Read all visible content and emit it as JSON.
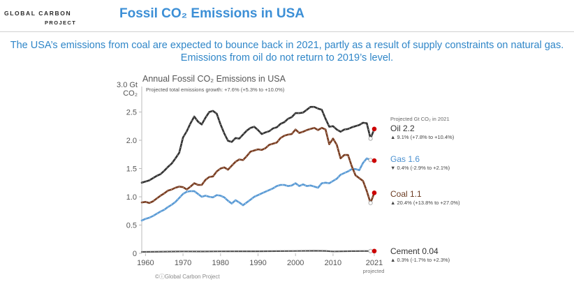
{
  "header": {
    "logo_line1": "GLOBAL CARBON",
    "logo_line2": "PROJECT",
    "slide_title": "Fossil CO₂ Emissions in USA",
    "subtitle_line1": "The USA’s emissions from coal are expected to bounce back in 2021, partly as a result of supply constraints on natural gas.",
    "subtitle_line2": "Emissions from oil do not return to 2019’s level."
  },
  "chart_data": {
    "type": "line",
    "title": "Annual Fossil CO₂ Emissions in USA",
    "subtitle": "Projected total emissions growth: +7.6% (+5.3% to +10.0%)",
    "ylabel_line1": "3.0 Gt",
    "ylabel_line2": "CO₂",
    "ylim": [
      0,
      3.0
    ],
    "xlim": [
      1959,
      2021
    ],
    "yticks": [
      "0",
      "0.5",
      "1.0",
      "1.5",
      "2.0",
      "2.5"
    ],
    "yticks_values": [
      0,
      0.5,
      1.0,
      1.5,
      2.0,
      2.5
    ],
    "xticks": [
      "1960",
      "1970",
      "1980",
      "1990",
      "2000",
      "2010",
      "2021"
    ],
    "xticks_values": [
      1960,
      1970,
      1980,
      1990,
      2000,
      2010,
      2021
    ],
    "x_note": "projected",
    "legend_header": "Projected Gt CO₂ in 2021",
    "credit": "©ⓘGlobal Carbon Project",
    "colors": {
      "oil": "#333333",
      "gas": "#5b9bd5",
      "coal": "#7a3e22",
      "cement": "#555555",
      "projection": "#cc0000"
    },
    "series": [
      {
        "key": "oil",
        "name": "Oil 2.2",
        "note": "▲ 9.1% (+7.8% to +10.4%)",
        "points": [
          [
            1959,
            1.25
          ],
          [
            1960,
            1.27
          ],
          [
            1961,
            1.29
          ],
          [
            1962,
            1.33
          ],
          [
            1963,
            1.37
          ],
          [
            1964,
            1.4
          ],
          [
            1965,
            1.46
          ],
          [
            1966,
            1.53
          ],
          [
            1967,
            1.59
          ],
          [
            1968,
            1.68
          ],
          [
            1969,
            1.78
          ],
          [
            1970,
            2.05
          ],
          [
            1971,
            2.16
          ],
          [
            1972,
            2.3
          ],
          [
            1973,
            2.42
          ],
          [
            1974,
            2.33
          ],
          [
            1975,
            2.28
          ],
          [
            1976,
            2.4
          ],
          [
            1977,
            2.5
          ],
          [
            1978,
            2.52
          ],
          [
            1979,
            2.47
          ],
          [
            1980,
            2.28
          ],
          [
            1981,
            2.12
          ],
          [
            1982,
            1.99
          ],
          [
            1983,
            1.97
          ],
          [
            1984,
            2.04
          ],
          [
            1985,
            2.03
          ],
          [
            1986,
            2.1
          ],
          [
            1987,
            2.17
          ],
          [
            1988,
            2.22
          ],
          [
            1989,
            2.24
          ],
          [
            1990,
            2.18
          ],
          [
            1991,
            2.11
          ],
          [
            1992,
            2.14
          ],
          [
            1993,
            2.16
          ],
          [
            1994,
            2.21
          ],
          [
            1995,
            2.23
          ],
          [
            1996,
            2.29
          ],
          [
            1997,
            2.32
          ],
          [
            1998,
            2.38
          ],
          [
            1999,
            2.41
          ],
          [
            2000,
            2.48
          ],
          [
            2001,
            2.48
          ],
          [
            2002,
            2.49
          ],
          [
            2003,
            2.54
          ],
          [
            2004,
            2.59
          ],
          [
            2005,
            2.59
          ],
          [
            2006,
            2.56
          ],
          [
            2007,
            2.54
          ],
          [
            2008,
            2.38
          ],
          [
            2009,
            2.24
          ],
          [
            2010,
            2.25
          ],
          [
            2011,
            2.19
          ],
          [
            2012,
            2.15
          ],
          [
            2013,
            2.19
          ],
          [
            2014,
            2.2
          ],
          [
            2015,
            2.23
          ],
          [
            2016,
            2.25
          ],
          [
            2017,
            2.27
          ],
          [
            2018,
            2.31
          ],
          [
            2019,
            2.3
          ],
          [
            2020,
            2.03
          ],
          [
            2021,
            2.2
          ]
        ]
      },
      {
        "key": "gas",
        "name": "Gas 1.6",
        "note": "▼ 0.4% (-2.9% to +2.1%)",
        "points": [
          [
            1959,
            0.58
          ],
          [
            1960,
            0.61
          ],
          [
            1961,
            0.63
          ],
          [
            1962,
            0.66
          ],
          [
            1963,
            0.7
          ],
          [
            1964,
            0.74
          ],
          [
            1965,
            0.77
          ],
          [
            1966,
            0.82
          ],
          [
            1967,
            0.86
          ],
          [
            1968,
            0.91
          ],
          [
            1969,
            0.98
          ],
          [
            1970,
            1.05
          ],
          [
            1971,
            1.09
          ],
          [
            1972,
            1.1
          ],
          [
            1973,
            1.1
          ],
          [
            1974,
            1.05
          ],
          [
            1975,
            1.0
          ],
          [
            1976,
            1.02
          ],
          [
            1977,
            1.0
          ],
          [
            1978,
            0.99
          ],
          [
            1979,
            1.03
          ],
          [
            1980,
            1.02
          ],
          [
            1981,
            0.99
          ],
          [
            1982,
            0.93
          ],
          [
            1983,
            0.88
          ],
          [
            1984,
            0.94
          ],
          [
            1985,
            0.9
          ],
          [
            1986,
            0.85
          ],
          [
            1987,
            0.9
          ],
          [
            1988,
            0.95
          ],
          [
            1989,
            1.0
          ],
          [
            1990,
            1.03
          ],
          [
            1991,
            1.06
          ],
          [
            1992,
            1.09
          ],
          [
            1993,
            1.12
          ],
          [
            1994,
            1.15
          ],
          [
            1995,
            1.19
          ],
          [
            1996,
            1.21
          ],
          [
            1997,
            1.21
          ],
          [
            1998,
            1.19
          ],
          [
            1999,
            1.2
          ],
          [
            2000,
            1.24
          ],
          [
            2001,
            1.19
          ],
          [
            2002,
            1.22
          ],
          [
            2003,
            1.19
          ],
          [
            2004,
            1.2
          ],
          [
            2005,
            1.18
          ],
          [
            2006,
            1.16
          ],
          [
            2007,
            1.24
          ],
          [
            2008,
            1.25
          ],
          [
            2009,
            1.24
          ],
          [
            2010,
            1.28
          ],
          [
            2011,
            1.32
          ],
          [
            2012,
            1.39
          ],
          [
            2013,
            1.42
          ],
          [
            2014,
            1.45
          ],
          [
            2015,
            1.49
          ],
          [
            2016,
            1.49
          ],
          [
            2017,
            1.47
          ],
          [
            2018,
            1.6
          ],
          [
            2019,
            1.68
          ],
          [
            2020,
            1.65
          ],
          [
            2021,
            1.64
          ]
        ]
      },
      {
        "key": "coal",
        "name": "Coal 1.1",
        "note": "▲ 20.4% (+13.8% to +27.0%)",
        "points": [
          [
            1959,
            0.9
          ],
          [
            1960,
            0.91
          ],
          [
            1961,
            0.89
          ],
          [
            1962,
            0.92
          ],
          [
            1963,
            0.97
          ],
          [
            1964,
            1.02
          ],
          [
            1965,
            1.06
          ],
          [
            1966,
            1.11
          ],
          [
            1967,
            1.13
          ],
          [
            1968,
            1.16
          ],
          [
            1969,
            1.18
          ],
          [
            1970,
            1.17
          ],
          [
            1971,
            1.13
          ],
          [
            1972,
            1.18
          ],
          [
            1973,
            1.24
          ],
          [
            1974,
            1.21
          ],
          [
            1975,
            1.21
          ],
          [
            1976,
            1.3
          ],
          [
            1977,
            1.35
          ],
          [
            1978,
            1.36
          ],
          [
            1979,
            1.45
          ],
          [
            1980,
            1.5
          ],
          [
            1981,
            1.52
          ],
          [
            1982,
            1.48
          ],
          [
            1983,
            1.55
          ],
          [
            1984,
            1.62
          ],
          [
            1985,
            1.66
          ],
          [
            1986,
            1.65
          ],
          [
            1987,
            1.72
          ],
          [
            1988,
            1.8
          ],
          [
            1989,
            1.82
          ],
          [
            1990,
            1.84
          ],
          [
            1991,
            1.83
          ],
          [
            1992,
            1.86
          ],
          [
            1993,
            1.92
          ],
          [
            1994,
            1.94
          ],
          [
            1995,
            1.96
          ],
          [
            1996,
            2.04
          ],
          [
            1997,
            2.08
          ],
          [
            1998,
            2.1
          ],
          [
            1999,
            2.11
          ],
          [
            2000,
            2.19
          ],
          [
            2001,
            2.13
          ],
          [
            2002,
            2.15
          ],
          [
            2003,
            2.18
          ],
          [
            2004,
            2.2
          ],
          [
            2005,
            2.22
          ],
          [
            2006,
            2.18
          ],
          [
            2007,
            2.22
          ],
          [
            2008,
            2.19
          ],
          [
            2009,
            1.93
          ],
          [
            2010,
            2.03
          ],
          [
            2011,
            1.92
          ],
          [
            2012,
            1.68
          ],
          [
            2013,
            1.74
          ],
          [
            2014,
            1.74
          ],
          [
            2015,
            1.54
          ],
          [
            2016,
            1.38
          ],
          [
            2017,
            1.33
          ],
          [
            2018,
            1.28
          ],
          [
            2019,
            1.1
          ],
          [
            2020,
            0.89
          ],
          [
            2021,
            1.07
          ]
        ]
      },
      {
        "key": "cement",
        "name": "Cement 0.04",
        "note": "▲ 0.3% (-1.7% to +2.3%)",
        "points": [
          [
            1959,
            0.025
          ],
          [
            1965,
            0.03
          ],
          [
            1970,
            0.033
          ],
          [
            1975,
            0.032
          ],
          [
            1980,
            0.035
          ],
          [
            1985,
            0.036
          ],
          [
            1990,
            0.036
          ],
          [
            1995,
            0.038
          ],
          [
            2000,
            0.041
          ],
          [
            2005,
            0.045
          ],
          [
            2008,
            0.042
          ],
          [
            2010,
            0.033
          ],
          [
            2015,
            0.038
          ],
          [
            2019,
            0.041
          ],
          [
            2020,
            0.04
          ],
          [
            2021,
            0.04
          ]
        ]
      }
    ]
  }
}
